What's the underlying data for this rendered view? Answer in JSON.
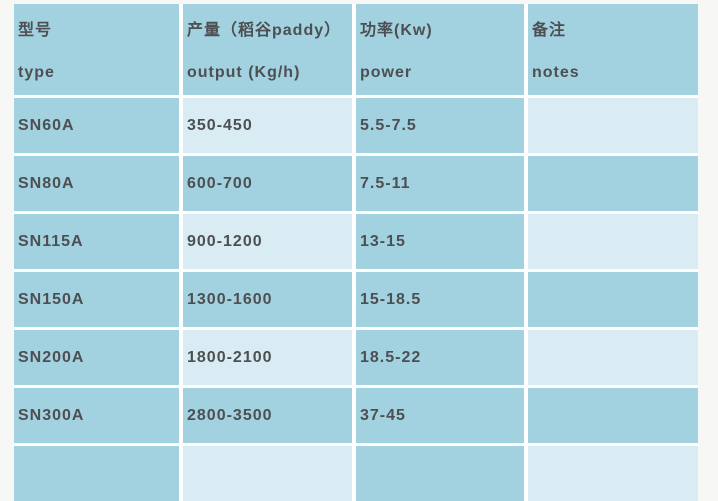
{
  "table": {
    "header": {
      "columns": [
        {
          "zh": "型号",
          "en": "type"
        },
        {
          "zh": "产量（稻谷paddy）",
          "en": "output (Kg/h)"
        },
        {
          "zh": "功率(Kw)",
          "en": "power"
        },
        {
          "zh": "备注",
          "en": "notes"
        }
      ]
    },
    "rows": [
      {
        "model": "SN60A",
        "output": "350-450",
        "power": "5.5-7.5",
        "notes": ""
      },
      {
        "model": "SN80A",
        "output": "600-700",
        "power": "7.5-11",
        "notes": ""
      },
      {
        "model": "SN115A",
        "output": "900-1200",
        "power": "13-15",
        "notes": ""
      },
      {
        "model": "SN150A",
        "output": "1300-1600",
        "power": "15-18.5",
        "notes": ""
      },
      {
        "model": "SN200A",
        "output": "1800-2100",
        "power": "18.5-22",
        "notes": ""
      },
      {
        "model": "SN300A",
        "output": "2800-3500",
        "power": "37-45",
        "notes": ""
      },
      {
        "model": "",
        "output": "",
        "power": "",
        "notes": ""
      }
    ],
    "colors": {
      "cell_dark": "#a2d2e0",
      "cell_light": "#d9ecf3",
      "text": "#4d4f52",
      "gap": "#ffffff",
      "page_bg": "#f7f7f6"
    }
  }
}
